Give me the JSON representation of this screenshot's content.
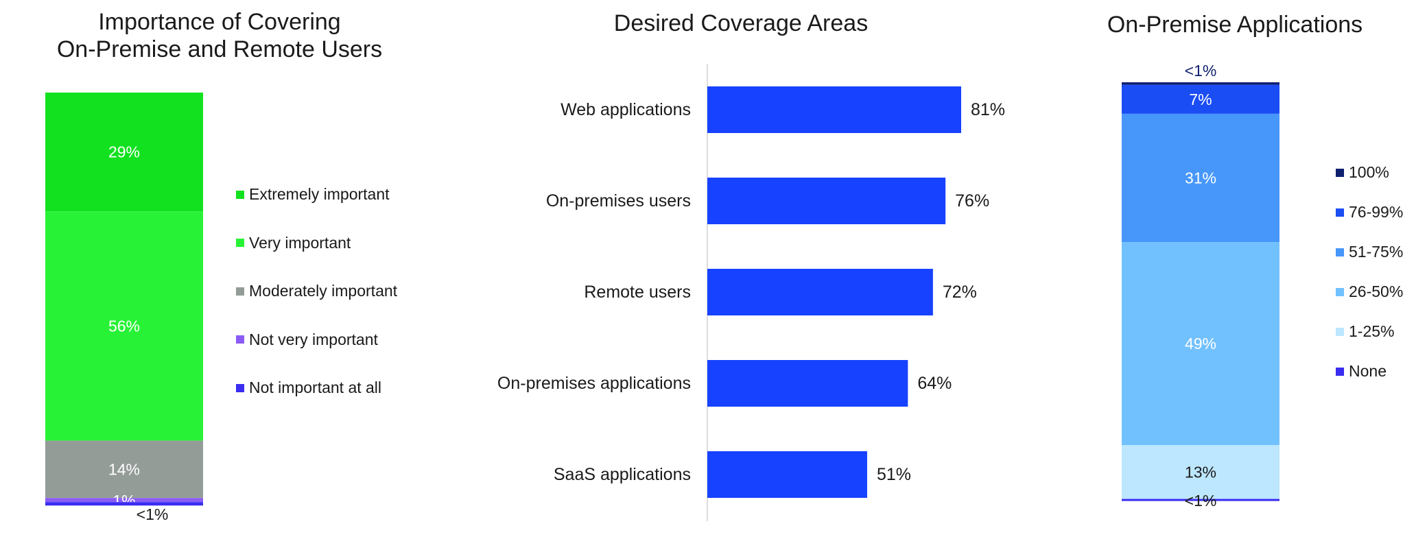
{
  "chart_data": [
    {
      "type": "bar",
      "subtype": "stacked-100",
      "title": "Importance of Covering\nOn-Premise and Remote Users",
      "series": [
        {
          "name": "Extremely important",
          "value": 29,
          "label": "29%",
          "color": "#11e11f"
        },
        {
          "name": "Very important",
          "value": 56,
          "label": "56%",
          "color": "#27f235"
        },
        {
          "name": "Moderately important",
          "value": 14,
          "label": "14%",
          "color": "#949c98"
        },
        {
          "name": "Not very important",
          "value": 1,
          "label": "1%",
          "color": "#8a5cf5"
        },
        {
          "name": "Not important at all",
          "value": 0.3,
          "label": "<1%",
          "color": "#3a2df0"
        }
      ],
      "legend_position": "right"
    },
    {
      "type": "bar",
      "orientation": "horizontal",
      "title": "Desired Coverage Areas",
      "categories": [
        "Web applications",
        "On-premises users",
        "Remote users",
        "On-premises applications",
        "SaaS applications"
      ],
      "values": [
        81,
        76,
        72,
        64,
        51
      ],
      "labels": [
        "81%",
        "76%",
        "72%",
        "64%",
        "51%"
      ],
      "xlim": [
        0,
        100
      ],
      "color": "#1742ff",
      "grid": false
    },
    {
      "type": "bar",
      "subtype": "stacked-100",
      "title": "On-Premise Applications",
      "series": [
        {
          "name": "100%",
          "value": 0.6,
          "label": "<1%",
          "color": "#0e1f6e"
        },
        {
          "name": "76-99%",
          "value": 7,
          "label": "7%",
          "color": "#1a4df3"
        },
        {
          "name": "51-75%",
          "value": 31,
          "label": "31%",
          "color": "#4797fb"
        },
        {
          "name": "26-50%",
          "value": 49,
          "label": "49%",
          "color": "#72c1ff"
        },
        {
          "name": "1-25%",
          "value": 13,
          "label": "13%",
          "color": "#bde6ff"
        },
        {
          "name": "None",
          "value": 0.4,
          "label": "<1%",
          "color": "#3a2df0"
        }
      ],
      "legend_position": "right"
    }
  ]
}
